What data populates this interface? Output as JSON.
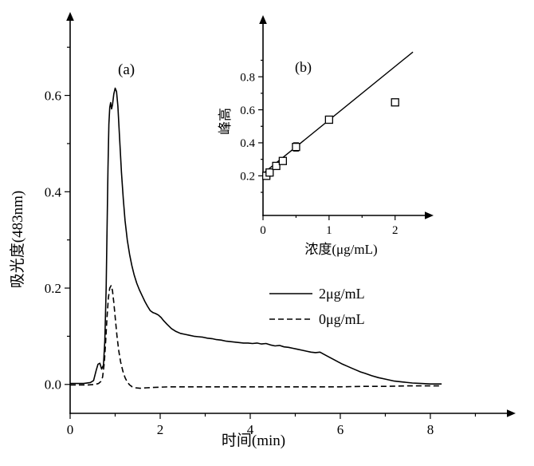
{
  "figure": {
    "background": "#ffffff",
    "line_color": "#000000"
  },
  "chart_data": [
    {
      "id": "main",
      "name": "chromatogram-panel",
      "type": "line",
      "panel_label": "(a)",
      "xlabel": "时间(min)",
      "ylabel": "吸光度(483nm)",
      "xlim": [
        0,
        9.7
      ],
      "ylim": [
        -0.06,
        0.755
      ],
      "grid": false,
      "xticks": {
        "values": [
          0,
          2,
          4,
          6,
          8
        ],
        "labels": [
          "0",
          "2",
          "4",
          "6",
          "8"
        ],
        "minor": [
          1,
          3,
          5,
          7,
          9
        ]
      },
      "yticks": {
        "values": [
          0,
          0.2,
          0.4,
          0.6
        ],
        "labels": [
          "0.0",
          "0.2",
          "0.4",
          "0.6"
        ],
        "minor": [
          0.1,
          0.3,
          0.5,
          0.7
        ]
      },
      "legend": {
        "position": "center-right-inside",
        "entries": [
          {
            "label": "2μg/mL",
            "line_style": "solid"
          },
          {
            "label": "0μg/mL",
            "line_style": "dashed"
          }
        ]
      },
      "series": [
        {
          "name": "2μg/mL",
          "line_style": "solid",
          "points": [
            [
              0,
              0.002
            ],
            [
              0.3,
              0.002
            ],
            [
              0.45,
              0.004
            ],
            [
              0.52,
              0.008
            ],
            [
              0.58,
              0.03
            ],
            [
              0.62,
              0.042
            ],
            [
              0.66,
              0.044
            ],
            [
              0.7,
              0.032
            ],
            [
              0.74,
              0.04
            ],
            [
              0.77,
              0.09
            ],
            [
              0.8,
              0.2
            ],
            [
              0.82,
              0.32
            ],
            [
              0.84,
              0.45
            ],
            [
              0.86,
              0.54
            ],
            [
              0.88,
              0.575
            ],
            [
              0.9,
              0.585
            ],
            [
              0.92,
              0.572
            ],
            [
              0.94,
              0.58
            ],
            [
              0.97,
              0.603
            ],
            [
              1.0,
              0.615
            ],
            [
              1.03,
              0.608
            ],
            [
              1.06,
              0.578
            ],
            [
              1.1,
              0.51
            ],
            [
              1.14,
              0.44
            ],
            [
              1.18,
              0.385
            ],
            [
              1.22,
              0.34
            ],
            [
              1.27,
              0.3
            ],
            [
              1.32,
              0.27
            ],
            [
              1.37,
              0.247
            ],
            [
              1.42,
              0.228
            ],
            [
              1.48,
              0.21
            ],
            [
              1.54,
              0.196
            ],
            [
              1.6,
              0.184
            ],
            [
              1.66,
              0.172
            ],
            [
              1.72,
              0.162
            ],
            [
              1.78,
              0.153
            ],
            [
              1.84,
              0.149
            ],
            [
              1.9,
              0.147
            ],
            [
              1.96,
              0.144
            ],
            [
              2.02,
              0.139
            ],
            [
              2.08,
              0.132
            ],
            [
              2.15,
              0.125
            ],
            [
              2.25,
              0.116
            ],
            [
              2.35,
              0.11
            ],
            [
              2.45,
              0.106
            ],
            [
              2.55,
              0.104
            ],
            [
              2.65,
              0.102
            ],
            [
              2.75,
              0.1
            ],
            [
              2.85,
              0.099
            ],
            [
              2.95,
              0.098
            ],
            [
              3.05,
              0.096
            ],
            [
              3.15,
              0.095
            ],
            [
              3.25,
              0.093
            ],
            [
              3.35,
              0.092
            ],
            [
              3.45,
              0.09
            ],
            [
              3.55,
              0.089
            ],
            [
              3.65,
              0.088
            ],
            [
              3.75,
              0.087
            ],
            [
              3.85,
              0.086
            ],
            [
              3.95,
              0.086
            ],
            [
              4.05,
              0.085
            ],
            [
              4.15,
              0.086
            ],
            [
              4.25,
              0.084
            ],
            [
              4.35,
              0.085
            ],
            [
              4.45,
              0.082
            ],
            [
              4.55,
              0.08
            ],
            [
              4.65,
              0.081
            ],
            [
              4.75,
              0.078
            ],
            [
              4.85,
              0.077
            ],
            [
              4.95,
              0.075
            ],
            [
              5.05,
              0.073
            ],
            [
              5.15,
              0.071
            ],
            [
              5.25,
              0.069
            ],
            [
              5.35,
              0.067
            ],
            [
              5.45,
              0.066
            ],
            [
              5.55,
              0.067
            ],
            [
              5.65,
              0.062
            ],
            [
              5.75,
              0.057
            ],
            [
              5.85,
              0.052
            ],
            [
              5.95,
              0.047
            ],
            [
              6.05,
              0.042
            ],
            [
              6.15,
              0.038
            ],
            [
              6.25,
              0.034
            ],
            [
              6.35,
              0.03
            ],
            [
              6.45,
              0.026
            ],
            [
              6.55,
              0.023
            ],
            [
              6.7,
              0.018
            ],
            [
              6.85,
              0.014
            ],
            [
              7.0,
              0.011
            ],
            [
              7.2,
              0.007
            ],
            [
              7.4,
              0.005
            ],
            [
              7.6,
              0.003
            ],
            [
              7.8,
              0.002
            ],
            [
              8.0,
              0.001
            ],
            [
              8.25,
              0.001
            ]
          ]
        },
        {
          "name": "0μg/mL",
          "line_style": "dashed",
          "points": [
            [
              0,
              -0.001
            ],
            [
              0.4,
              -0.001
            ],
            [
              0.55,
              0
            ],
            [
              0.63,
              0.002
            ],
            [
              0.68,
              0.006
            ],
            [
              0.72,
              0.015
            ],
            [
              0.76,
              0.045
            ],
            [
              0.79,
              0.09
            ],
            [
              0.82,
              0.14
            ],
            [
              0.85,
              0.18
            ],
            [
              0.88,
              0.2
            ],
            [
              0.91,
              0.205
            ],
            [
              0.94,
              0.195
            ],
            [
              0.97,
              0.17
            ],
            [
              1.0,
              0.14
            ],
            [
              1.04,
              0.1
            ],
            [
              1.08,
              0.07
            ],
            [
              1.12,
              0.047
            ],
            [
              1.17,
              0.028
            ],
            [
              1.22,
              0.014
            ],
            [
              1.27,
              0.005
            ],
            [
              1.32,
              -0.001
            ],
            [
              1.38,
              -0.005
            ],
            [
              1.45,
              -0.007
            ],
            [
              1.55,
              -0.008
            ],
            [
              1.7,
              -0.007
            ],
            [
              1.9,
              -0.006
            ],
            [
              2.2,
              -0.005
            ],
            [
              2.6,
              -0.005
            ],
            [
              3.0,
              -0.005
            ],
            [
              3.5,
              -0.005
            ],
            [
              4.0,
              -0.005
            ],
            [
              4.5,
              -0.005
            ],
            [
              5.0,
              -0.005
            ],
            [
              5.5,
              -0.005
            ],
            [
              6.0,
              -0.005
            ],
            [
              6.5,
              -0.004
            ],
            [
              7.0,
              -0.004
            ],
            [
              7.5,
              -0.003
            ],
            [
              8.0,
              -0.003
            ],
            [
              8.25,
              -0.003
            ]
          ]
        }
      ]
    },
    {
      "id": "inset",
      "name": "calibration-panel",
      "type": "scatter",
      "panel_label": "(b)",
      "xlabel": "浓度(μg/mL)",
      "ylabel": "峰高",
      "xlim": [
        0,
        2.45
      ],
      "ylim": [
        -0.04,
        1.12
      ],
      "grid": false,
      "xticks": {
        "values": [
          0,
          1,
          2
        ],
        "labels": [
          "0",
          "1",
          "2"
        ],
        "minor": [
          0.5,
          1.5
        ]
      },
      "yticks": {
        "values": [
          0.2,
          0.4,
          0.6,
          0.8
        ],
        "labels": [
          "0.2",
          "0.4",
          "0.6",
          "0.8"
        ],
        "minor": [
          0.1,
          0.3,
          0.5,
          0.7,
          0.9
        ]
      },
      "marker": "open-square",
      "points": [
        {
          "x": 0.05,
          "y": 0.2,
          "err": 0.02
        },
        {
          "x": 0.1,
          "y": 0.22,
          "err": 0.02
        },
        {
          "x": 0.2,
          "y": 0.26,
          "err": 0.02
        },
        {
          "x": 0.3,
          "y": 0.29,
          "err": 0.02
        },
        {
          "x": 0.5,
          "y": 0.375,
          "err": 0.025
        },
        {
          "x": 1.0,
          "y": 0.54,
          "err": 0.02
        },
        {
          "x": 2.0,
          "y": 0.645,
          "err": 0.015
        }
      ],
      "fit_line": {
        "x1": 0.02,
        "y1": 0.22,
        "x2": 2.27,
        "y2": 0.95
      }
    }
  ]
}
